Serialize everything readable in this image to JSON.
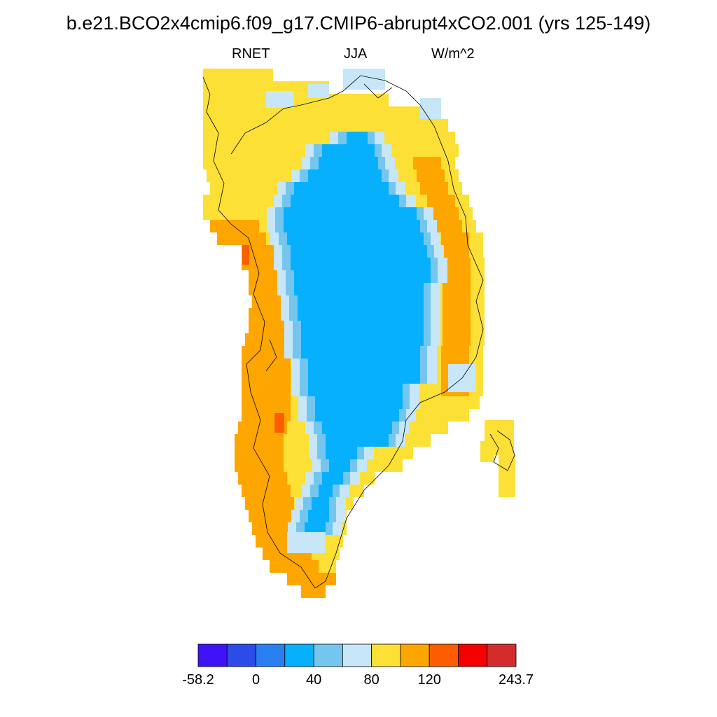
{
  "title": "b.e21.BCO2x4cmip6.f09_g17.CMIP6-abrupt4xCO2.001 (yrs 125-149)",
  "subtitle": {
    "variable": "RNET",
    "season": "JJA",
    "units": "W/m^2"
  },
  "colorbar": {
    "colors": [
      "#3f13f5",
      "#2b4ce8",
      "#2a7ff0",
      "#07b0fc",
      "#74c6ee",
      "#c7e6f7",
      "#fde036",
      "#fea600",
      "#fe5c00",
      "#f40101",
      "#d42c2d"
    ],
    "labels": [
      {
        "text": "-58.2",
        "boundary": 0
      },
      {
        "text": "0",
        "boundary": 2
      },
      {
        "text": "40",
        "boundary": 4
      },
      {
        "text": "80",
        "boundary": 6
      },
      {
        "text": "120",
        "boundary": 8
      },
      {
        "text": "243.7",
        "boundary": 11
      }
    ]
  },
  "map": {
    "region": "Greenland",
    "field": "net radiation, JJA mean",
    "categories": [
      "yellow",
      "light-blue",
      "blue",
      "sky",
      "orange",
      "dark-orange"
    ]
  }
}
